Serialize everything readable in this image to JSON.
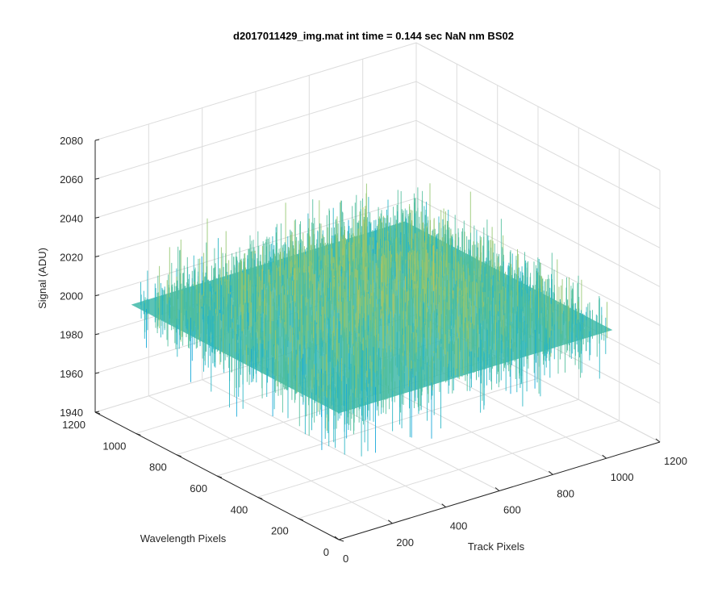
{
  "chart_data": {
    "type": "surface",
    "title": "d2017011429_img.mat int time = 0.144 sec  NaN nm BS02",
    "xlabel": "Track Pixels",
    "ylabel": "Wavelength Pixels",
    "zlabel": "Signal (ADU)",
    "xlim": [
      0,
      1200
    ],
    "ylim": [
      0,
      1200
    ],
    "zlim": [
      1940,
      2080
    ],
    "xticks": [
      "0",
      "200",
      "400",
      "600",
      "800",
      "1000",
      "1200"
    ],
    "yticks": [
      "0",
      "200",
      "400",
      "600",
      "800",
      "1000",
      "1200"
    ],
    "zticks": [
      "1940",
      "1960",
      "1980",
      "2000",
      "2020",
      "2040",
      "2060",
      "2080"
    ],
    "data_extent": {
      "x": [
        1,
        1024
      ],
      "y": [
        1,
        1024
      ]
    },
    "z_typical": {
      "center": 2020,
      "edge": 2005,
      "min_approx": 1950,
      "max_approx": 2075
    },
    "grid": true,
    "colormap": "parula",
    "colors": [
      "#0072bd",
      "#0da5d8",
      "#25b5c4",
      "#4fbe9c",
      "#93c66e",
      "#c8c454",
      "#e5b94c"
    ]
  }
}
